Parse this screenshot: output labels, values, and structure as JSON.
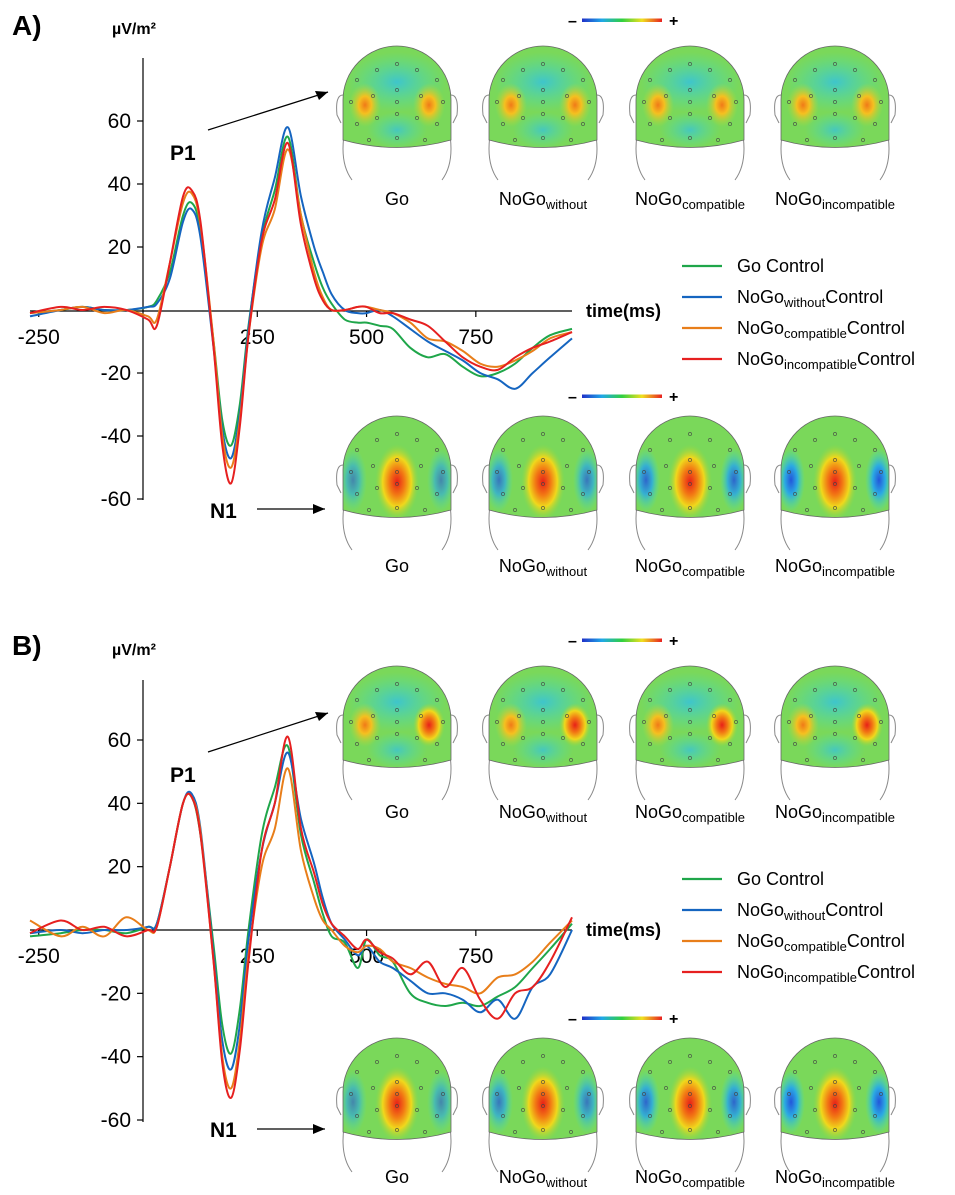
{
  "chart_data": [
    {
      "type": "line",
      "panel_label": "A)",
      "ylabel": "µV/m²",
      "xlabel": "time(ms)",
      "xlim": [
        -270,
        970
      ],
      "ylim": [
        -62,
        80
      ],
      "xticks": [
        -250,
        250,
        500,
        750
      ],
      "yticks": [
        60,
        40,
        20,
        -20,
        -40,
        -60
      ],
      "annotations": [
        "P1",
        "N1"
      ],
      "colorbar": {
        "minus": "–",
        "plus": "+"
      },
      "topomaps": {
        "P1": {
          "peak_map": "bilateral-lateral-positive",
          "labels": [
            {
              "main": "Go",
              "sub": ""
            },
            {
              "main": "NoGo",
              "sub": "without"
            },
            {
              "main": "NoGo",
              "sub": "compatible"
            },
            {
              "main": "NoGo",
              "sub": "incompatible"
            }
          ]
        },
        "N1": {
          "peak_map": "central-positive-lateral-negative",
          "labels": [
            {
              "main": "Go",
              "sub": ""
            },
            {
              "main": "NoGo",
              "sub": "without"
            },
            {
              "main": "NoGo",
              "sub": "compatible"
            },
            {
              "main": "NoGo",
              "sub": "incompatible"
            }
          ]
        }
      },
      "series": [
        {
          "name": "Go Control",
          "label_main": "Go Control",
          "label_sub": "",
          "label_tail": "",
          "color": "#1fa64a",
          "x": [
            -270,
            -200,
            -150,
            -100,
            -50,
            0,
            20,
            50,
            80,
            100,
            120,
            150,
            170,
            190,
            210,
            230,
            260,
            290,
            320,
            350,
            380,
            400,
            420,
            450,
            480,
            500,
            530,
            560,
            600,
            640,
            680,
            720,
            760,
            800,
            840,
            880,
            920,
            970
          ],
          "y": [
            -1,
            0,
            1,
            0,
            0,
            1,
            3,
            12,
            30,
            34,
            25,
            -10,
            -35,
            -43,
            -30,
            -5,
            23,
            38,
            55,
            30,
            15,
            7,
            2,
            -3,
            -4,
            -4,
            -5,
            -6,
            -12,
            -15,
            -14,
            -18,
            -21,
            -20,
            -17,
            -12,
            -8,
            -6
          ]
        },
        {
          "name": "NoGo without Control",
          "label_main": "NoGo",
          "label_sub": "without",
          "label_tail": "Control",
          "color": "#1565c0",
          "x": [
            -270,
            -200,
            -150,
            -100,
            -50,
            0,
            20,
            50,
            80,
            100,
            120,
            150,
            170,
            190,
            210,
            230,
            260,
            290,
            320,
            350,
            380,
            400,
            420,
            450,
            480,
            500,
            530,
            560,
            600,
            640,
            680,
            720,
            760,
            800,
            840,
            880,
            920,
            970
          ],
          "y": [
            -2,
            0,
            1,
            0,
            0,
            1,
            2,
            10,
            28,
            32,
            23,
            -12,
            -38,
            -47,
            -33,
            -6,
            25,
            42,
            58,
            36,
            20,
            12,
            5,
            0,
            -1,
            -1,
            0,
            -2,
            -6,
            -10,
            -13,
            -16,
            -20,
            -22,
            -25,
            -20,
            -15,
            -9
          ]
        },
        {
          "name": "NoGo compatible Control",
          "label_main": "NoGo",
          "label_sub": "compatible",
          "label_tail": "Control",
          "color": "#e87e1a",
          "x": [
            -270,
            -200,
            -150,
            -100,
            -50,
            0,
            20,
            50,
            80,
            100,
            120,
            150,
            170,
            190,
            210,
            230,
            260,
            290,
            320,
            350,
            380,
            400,
            420,
            450,
            480,
            500,
            530,
            560,
            600,
            640,
            680,
            720,
            760,
            800,
            840,
            880,
            920,
            970
          ],
          "y": [
            -1,
            0,
            1,
            -1,
            0,
            -2,
            -3,
            15,
            34,
            37,
            27,
            -10,
            -40,
            -50,
            -35,
            -8,
            20,
            32,
            51,
            30,
            12,
            4,
            0,
            0,
            1,
            1,
            0,
            -1,
            -4,
            -9,
            -10,
            -13,
            -17,
            -18,
            -16,
            -13,
            -9,
            -7
          ]
        },
        {
          "name": "NoGo incompatible Control",
          "label_main": "NoGo",
          "label_sub": "incompatible",
          "label_tail": "Control",
          "color": "#e62020",
          "x": [
            -270,
            -200,
            -150,
            -100,
            -50,
            0,
            20,
            50,
            80,
            100,
            120,
            150,
            170,
            190,
            210,
            230,
            260,
            290,
            320,
            350,
            380,
            400,
            420,
            450,
            480,
            500,
            530,
            560,
            600,
            640,
            680,
            720,
            760,
            800,
            840,
            880,
            920,
            970
          ],
          "y": [
            -1,
            1,
            0,
            1,
            0,
            -3,
            -5,
            15,
            36,
            38,
            28,
            -12,
            -43,
            -55,
            -37,
            -8,
            22,
            35,
            53,
            27,
            10,
            3,
            0,
            0,
            1,
            1,
            -1,
            -1,
            -3,
            -5,
            -10,
            -15,
            -18,
            -19,
            -15,
            -12,
            -10,
            -7
          ]
        }
      ]
    },
    {
      "type": "line",
      "panel_label": "B)",
      "ylabel": "µV/m²",
      "xlabel": "time(ms)",
      "xlim": [
        -270,
        970
      ],
      "ylim": [
        -62,
        80
      ],
      "xticks": [
        -250,
        250,
        500,
        750
      ],
      "yticks": [
        60,
        40,
        20,
        -20,
        -40,
        -60
      ],
      "annotations": [
        "P1",
        "N1"
      ],
      "colorbar": {
        "minus": "–",
        "plus": "+"
      },
      "topomaps": {
        "P1": {
          "peak_map": "bilateral-right-stronger",
          "labels": [
            {
              "main": "Go",
              "sub": ""
            },
            {
              "main": "NoGo",
              "sub": "without"
            },
            {
              "main": "NoGo",
              "sub": "compatible"
            },
            {
              "main": "NoGo",
              "sub": "incompatible"
            }
          ]
        },
        "N1": {
          "peak_map": "central-positive-lateral-negative",
          "labels": [
            {
              "main": "Go",
              "sub": ""
            },
            {
              "main": "NoGo",
              "sub": "without"
            },
            {
              "main": "NoGo",
              "sub": "compatible"
            },
            {
              "main": "NoGo",
              "sub": "incompatible"
            }
          ]
        }
      },
      "series": [
        {
          "name": "Go Control",
          "label_main": "Go Control",
          "label_sub": "",
          "label_tail": "",
          "color": "#1fa64a",
          "x": [
            -270,
            -200,
            -150,
            -100,
            -50,
            0,
            20,
            50,
            80,
            100,
            120,
            150,
            170,
            190,
            210,
            230,
            260,
            290,
            320,
            350,
            380,
            400,
            420,
            450,
            480,
            500,
            530,
            560,
            600,
            640,
            680,
            720,
            760,
            800,
            840,
            880,
            920,
            970
          ],
          "y": [
            -2,
            -1,
            0,
            0,
            -1,
            1,
            2,
            20,
            40,
            42,
            30,
            -5,
            -30,
            -39,
            -25,
            0,
            30,
            45,
            58,
            30,
            15,
            5,
            -2,
            -4,
            -12,
            -3,
            -8,
            -10,
            -20,
            -23,
            -24,
            -23,
            -24,
            -21,
            -18,
            -12,
            -6,
            2
          ]
        },
        {
          "name": "NoGo without Control",
          "label_main": "NoGo",
          "label_sub": "without",
          "label_tail": "Control",
          "color": "#1565c0",
          "x": [
            -270,
            -200,
            -150,
            -100,
            -50,
            0,
            20,
            50,
            80,
            100,
            120,
            150,
            170,
            190,
            210,
            230,
            260,
            290,
            320,
            350,
            380,
            400,
            420,
            450,
            480,
            500,
            530,
            560,
            600,
            640,
            680,
            720,
            760,
            800,
            840,
            880,
            920,
            970
          ],
          "y": [
            -1,
            0,
            -1,
            0,
            0,
            1,
            2,
            20,
            40,
            43,
            32,
            -8,
            -35,
            -44,
            -30,
            -3,
            25,
            40,
            56,
            35,
            21,
            10,
            2,
            -3,
            -8,
            -5,
            -10,
            -12,
            -16,
            -20,
            -20,
            -22,
            -26,
            -22,
            -28,
            -18,
            -14,
            0
          ]
        },
        {
          "name": "NoGo compatible Control",
          "label_main": "NoGo",
          "label_sub": "compatible",
          "label_tail": "Control",
          "color": "#e87e1a",
          "x": [
            -270,
            -200,
            -150,
            -100,
            -50,
            0,
            20,
            50,
            80,
            100,
            120,
            150,
            170,
            190,
            210,
            230,
            260,
            290,
            320,
            350,
            380,
            400,
            420,
            450,
            480,
            500,
            530,
            560,
            600,
            640,
            680,
            720,
            760,
            800,
            840,
            880,
            920,
            970
          ],
          "y": [
            3,
            -2,
            1,
            -2,
            4,
            0,
            1,
            20,
            40,
            42,
            31,
            -10,
            -40,
            -50,
            -35,
            -8,
            20,
            32,
            51,
            25,
            10,
            3,
            0,
            -5,
            -7,
            -5,
            -6,
            -10,
            -12,
            -15,
            -17,
            -18,
            -20,
            -15,
            -14,
            -10,
            -4,
            3
          ]
        },
        {
          "name": "NoGo incompatible Control",
          "label_main": "NoGo",
          "label_sub": "incompatible",
          "label_tail": "Control",
          "color": "#e62020",
          "x": [
            -270,
            -200,
            -150,
            -100,
            -50,
            0,
            20,
            50,
            80,
            100,
            120,
            150,
            170,
            190,
            210,
            230,
            260,
            290,
            320,
            350,
            380,
            400,
            420,
            450,
            480,
            500,
            530,
            560,
            600,
            640,
            680,
            720,
            760,
            800,
            840,
            880,
            920,
            970
          ],
          "y": [
            -1,
            3,
            0,
            1,
            -2,
            0,
            1,
            20,
            40,
            42,
            30,
            -10,
            -42,
            -53,
            -38,
            -10,
            25,
            40,
            61,
            32,
            18,
            8,
            2,
            -2,
            -6,
            -3,
            -7,
            -9,
            -14,
            -10,
            -18,
            -12,
            -22,
            -28,
            -20,
            -18,
            -10,
            4
          ]
        }
      ]
    }
  ]
}
